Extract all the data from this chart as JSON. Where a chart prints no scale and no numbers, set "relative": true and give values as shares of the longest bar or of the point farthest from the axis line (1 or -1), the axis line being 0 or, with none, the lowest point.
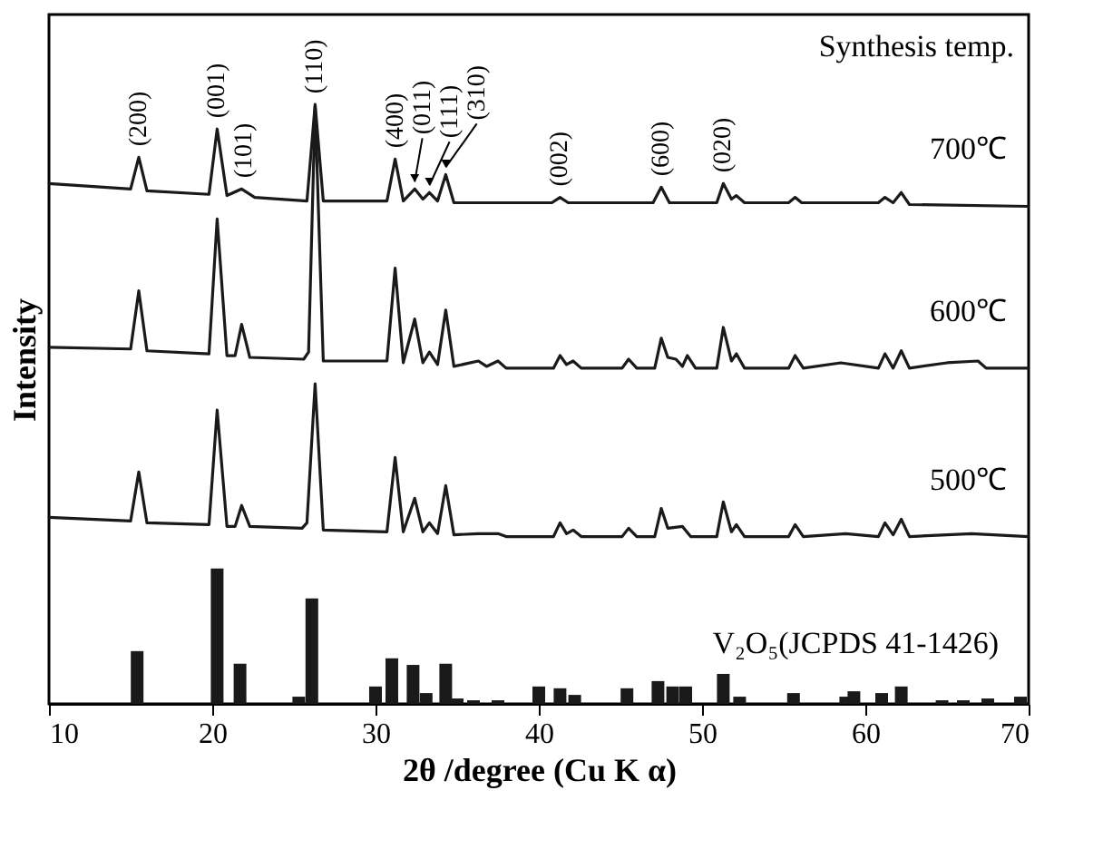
{
  "chart_data": {
    "type": "line",
    "relative": true,
    "xlabel": "2θ /degree (Cu K α)",
    "ylabel": "Intensity",
    "xlim": [
      10,
      70
    ],
    "xticks": [
      10,
      20,
      30,
      40,
      50,
      60,
      70
    ],
    "annotations": [
      "Synthesis temp.",
      {
        "text": "(200)",
        "x": 15.5,
        "y": 0.912
      },
      {
        "text": "(001)",
        "x": 20.3,
        "y": 0.959
      },
      {
        "text": "(101)",
        "x": 21.8,
        "y": 0.859
      },
      {
        "text": "(110)",
        "x": 26.3,
        "y": 1.0
      },
      {
        "text": "(400)",
        "x": 31.2,
        "y": 0.909
      },
      {
        "text": "(011)",
        "x": 32.4,
        "y": 0.859
      },
      {
        "text": "(111)",
        "x": 33.3,
        "y": 0.853
      },
      {
        "text": "(310)",
        "x": 34.3,
        "y": 0.883
      },
      {
        "text": "(002)",
        "x": 41.3,
        "y": 0.845
      },
      {
        "text": "(600)",
        "x": 47.5,
        "y": 0.862
      },
      {
        "text": "(020)",
        "x": 51.3,
        "y": 0.868
      }
    ],
    "series": [
      {
        "name": "700℃",
        "color": "#1a1a1a",
        "x": [
          10,
          15.0,
          15.5,
          16.0,
          19.8,
          20.3,
          20.9,
          21.8,
          22.6,
          25.8,
          26.3,
          26.8,
          30.7,
          31.2,
          31.7,
          32.4,
          32.9,
          33.3,
          33.8,
          34.3,
          34.8,
          40.8,
          41.3,
          41.8,
          47.0,
          47.5,
          48.0,
          50.9,
          51.3,
          51.8,
          52.1,
          52.6,
          55.3,
          55.7,
          56.1,
          60.8,
          61.2,
          61.7,
          62.2,
          62.7,
          70
        ],
        "values": [
          0.868,
          0.859,
          0.912,
          0.856,
          0.85,
          0.959,
          0.848,
          0.859,
          0.845,
          0.839,
          1.0,
          0.839,
          0.839,
          0.909,
          0.839,
          0.859,
          0.842,
          0.853,
          0.839,
          0.883,
          0.836,
          0.836,
          0.845,
          0.836,
          0.836,
          0.862,
          0.836,
          0.836,
          0.868,
          0.842,
          0.848,
          0.836,
          0.836,
          0.845,
          0.836,
          0.836,
          0.845,
          0.836,
          0.853,
          0.833,
          0.83
        ]
      },
      {
        "name": "600℃",
        "color": "#1a1a1a",
        "x": [
          10,
          15.0,
          15.5,
          16.0,
          19.8,
          20.3,
          20.9,
          21.4,
          21.8,
          22.3,
          25.6,
          25.9,
          26.3,
          26.8,
          30.7,
          31.2,
          31.7,
          32.4,
          32.9,
          33.3,
          33.8,
          34.3,
          34.8,
          36.3,
          36.8,
          37.5,
          38.0,
          40.9,
          41.3,
          41.7,
          42.1,
          42.6,
          45.1,
          45.5,
          46.0,
          47.1,
          47.5,
          47.9,
          48.4,
          48.8,
          49.1,
          49.6,
          50.9,
          51.3,
          51.8,
          52.1,
          52.6,
          55.3,
          55.7,
          56.2,
          58.5,
          60.8,
          61.2,
          61.7,
          62.2,
          62.7,
          65.0,
          66.9,
          67.4,
          70
        ],
        "values": [
          0.595,
          0.592,
          0.689,
          0.589,
          0.584,
          0.809,
          0.581,
          0.581,
          0.633,
          0.578,
          0.575,
          0.587,
          0.997,
          0.572,
          0.572,
          0.727,
          0.569,
          0.642,
          0.569,
          0.587,
          0.566,
          0.657,
          0.563,
          0.572,
          0.563,
          0.572,
          0.56,
          0.56,
          0.581,
          0.566,
          0.572,
          0.56,
          0.56,
          0.575,
          0.56,
          0.56,
          0.61,
          0.578,
          0.575,
          0.563,
          0.581,
          0.56,
          0.56,
          0.628,
          0.572,
          0.584,
          0.56,
          0.56,
          0.581,
          0.56,
          0.569,
          0.56,
          0.584,
          0.56,
          0.589,
          0.56,
          0.569,
          0.572,
          0.56,
          0.56
        ]
      },
      {
        "name": "500℃",
        "color": "#1a1a1a",
        "x": [
          10,
          15.0,
          15.5,
          16.0,
          19.8,
          20.3,
          20.9,
          21.4,
          21.8,
          22.3,
          25.5,
          25.8,
          26.3,
          26.8,
          30.7,
          31.2,
          31.7,
          32.4,
          32.9,
          33.3,
          33.8,
          34.3,
          34.8,
          36.3,
          37.5,
          38.0,
          40.9,
          41.3,
          41.7,
          42.1,
          42.6,
          45.1,
          45.5,
          46.0,
          47.1,
          47.5,
          47.9,
          48.8,
          49.3,
          50.9,
          51.3,
          51.8,
          52.1,
          52.6,
          55.3,
          55.7,
          56.2,
          58.8,
          60.8,
          61.2,
          61.7,
          62.2,
          62.7,
          65.0,
          66.5,
          70
        ],
        "values": [
          0.311,
          0.305,
          0.387,
          0.302,
          0.299,
          0.49,
          0.296,
          0.296,
          0.331,
          0.296,
          0.293,
          0.302,
          0.534,
          0.29,
          0.287,
          0.411,
          0.287,
          0.343,
          0.287,
          0.302,
          0.284,
          0.364,
          0.282,
          0.284,
          0.284,
          0.279,
          0.279,
          0.302,
          0.284,
          0.29,
          0.279,
          0.279,
          0.293,
          0.279,
          0.279,
          0.326,
          0.293,
          0.296,
          0.279,
          0.279,
          0.337,
          0.287,
          0.299,
          0.279,
          0.279,
          0.299,
          0.279,
          0.284,
          0.279,
          0.302,
          0.282,
          0.308,
          0.279,
          0.282,
          0.284,
          0.279
        ]
      },
      {
        "name": "V₂O₅(JCPDS 41-1426)",
        "type": "bar",
        "color": "#1a1a1a",
        "x": [
          15.4,
          20.3,
          21.7,
          25.3,
          26.1,
          30.0,
          31.0,
          32.3,
          33.1,
          34.3,
          35.0,
          36.0,
          37.5,
          40.0,
          41.3,
          42.2,
          45.4,
          47.3,
          48.2,
          49.0,
          51.3,
          52.3,
          55.6,
          58.8,
          59.3,
          61.0,
          62.2,
          64.7,
          66.0,
          67.5,
          69.5
        ],
        "values": [
          0.088,
          0.226,
          0.067,
          0.012,
          0.176,
          0.029,
          0.076,
          0.065,
          0.018,
          0.067,
          0.009,
          0.006,
          0.006,
          0.029,
          0.026,
          0.015,
          0.026,
          0.038,
          0.029,
          0.029,
          0.05,
          0.012,
          0.018,
          0.012,
          0.021,
          0.018,
          0.029,
          0.006,
          0.006,
          0.009,
          0.012
        ]
      }
    ]
  }
}
